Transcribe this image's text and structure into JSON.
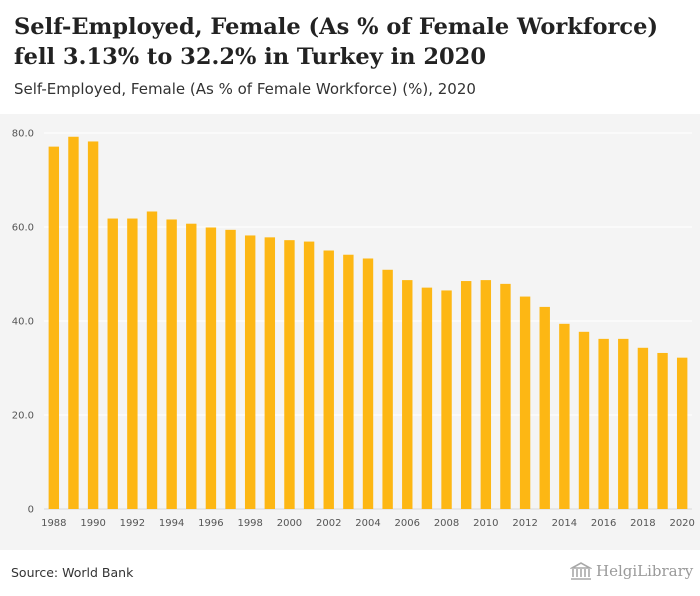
{
  "header": {
    "title": "Self-Employed, Female (As % of Female Workforce) fell 3.13% to 32.2% in Turkey in 2020",
    "subtitle": "Self-Employed, Female (As % of Female Workforce) (%), 2020"
  },
  "footer": {
    "source": "Source: World Bank",
    "logo_text": "HelgiLibrary"
  },
  "colors": {
    "bar": "#FDB714",
    "plot_background": "#f4f4f4",
    "grid": "#ffffff"
  },
  "chart_data": {
    "type": "bar",
    "x": [
      1988,
      1989,
      1990,
      1991,
      1992,
      1993,
      1994,
      1995,
      1996,
      1997,
      1998,
      1999,
      2000,
      2001,
      2002,
      2003,
      2004,
      2005,
      2006,
      2007,
      2008,
      2009,
      2010,
      2011,
      2012,
      2013,
      2014,
      2015,
      2016,
      2017,
      2018,
      2019,
      2020
    ],
    "values": [
      77.1,
      79.2,
      78.2,
      61.8,
      61.8,
      63.3,
      61.6,
      60.7,
      59.9,
      59.4,
      58.2,
      57.8,
      57.2,
      56.9,
      55.0,
      54.1,
      53.3,
      50.9,
      48.7,
      47.1,
      46.5,
      48.5,
      48.7,
      47.9,
      45.2,
      43.0,
      39.4,
      37.7,
      36.2,
      36.2,
      34.3,
      33.2,
      32.2
    ],
    "x_tick_labels": [
      "1988",
      "1990",
      "1992",
      "1994",
      "1996",
      "1998",
      "2000",
      "2002",
      "2004",
      "2006",
      "2008",
      "2010",
      "2012",
      "2014",
      "2016",
      "2018",
      "2020"
    ],
    "y_tick_labels": [
      "0",
      "20.0",
      "40.0",
      "60.0",
      "80.0"
    ],
    "y_ticks": [
      0,
      20,
      40,
      60,
      80
    ],
    "ylim": [
      0,
      80
    ],
    "grid": true,
    "legend": "none"
  }
}
